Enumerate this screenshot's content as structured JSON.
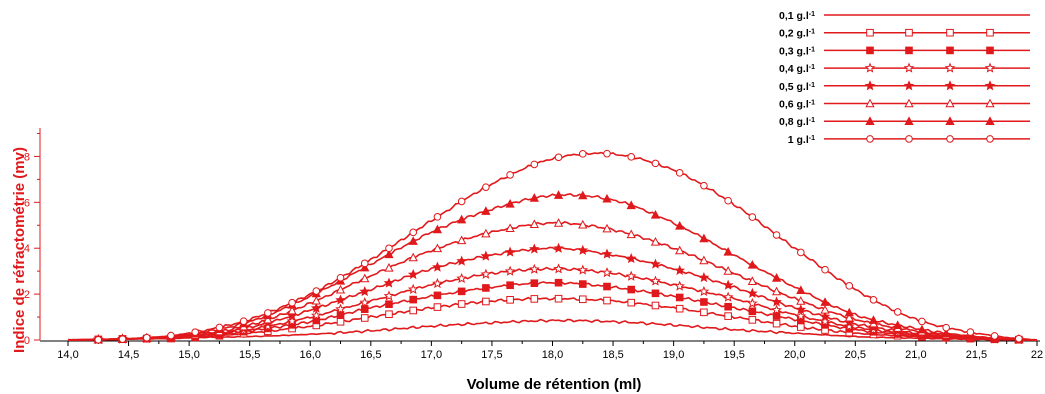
{
  "chart_data": {
    "type": "line",
    "xlabel": "Volume de rétention (ml)",
    "ylabel": "Indice de réfractométrie (mv)",
    "xlim": [
      14.0,
      22.0
    ],
    "ylim": [
      0,
      9.5
    ],
    "x_ticks": [
      "14,0",
      "14,5",
      "15,0",
      "15,5",
      "16,0",
      "16,5",
      "17,0",
      "17,5",
      "18,0",
      "18,5",
      "19,0",
      "19,5",
      "20,0",
      "20,5",
      "21,0",
      "21,5",
      "22"
    ],
    "y_ticks": [
      "0",
      "2",
      "4",
      "6",
      "8"
    ],
    "grid": false,
    "legend_position": "top-right",
    "color": "#e0191c",
    "x": [
      14.0,
      14.5,
      15.0,
      15.5,
      16.0,
      16.5,
      17.0,
      17.5,
      18.0,
      18.5,
      19.0,
      19.5,
      20.0,
      20.5,
      21.0,
      21.5,
      22.0
    ],
    "series": [
      {
        "name": "0,1 g.l-1",
        "marker": "none",
        "values": [
          0.0,
          0.05,
          0.1,
          0.15,
          0.25,
          0.4,
          0.6,
          0.75,
          0.85,
          0.8,
          0.65,
          0.45,
          0.3,
          0.15,
          0.08,
          0.03,
          0.0
        ]
      },
      {
        "name": "0,2 g.l-1",
        "marker": "square-open",
        "values": [
          0.0,
          0.05,
          0.1,
          0.3,
          0.6,
          1.0,
          1.4,
          1.7,
          1.8,
          1.7,
          1.4,
          1.0,
          0.6,
          0.3,
          0.15,
          0.05,
          0.0
        ]
      },
      {
        "name": "0,3 g.l-1",
        "marker": "square-filled",
        "values": [
          0.0,
          0.05,
          0.1,
          0.4,
          0.8,
          1.4,
          1.9,
          2.3,
          2.5,
          2.3,
          1.9,
          1.4,
          0.9,
          0.45,
          0.2,
          0.07,
          0.0
        ]
      },
      {
        "name": "0,4 g.l-1",
        "marker": "star-open",
        "values": [
          0.0,
          0.05,
          0.15,
          0.45,
          1.0,
          1.7,
          2.4,
          2.9,
          3.1,
          2.9,
          2.4,
          1.8,
          1.1,
          0.55,
          0.25,
          0.08,
          0.0
        ]
      },
      {
        "name": "0,5 g.l-1",
        "marker": "star-filled",
        "values": [
          0.0,
          0.05,
          0.15,
          0.55,
          1.3,
          2.2,
          3.1,
          3.7,
          4.0,
          3.7,
          3.1,
          2.3,
          1.4,
          0.7,
          0.3,
          0.1,
          0.0
        ]
      },
      {
        "name": "0,6 g.l-1",
        "marker": "triangle-open",
        "values": [
          0.0,
          0.05,
          0.2,
          0.65,
          1.6,
          2.8,
          3.9,
          4.7,
          5.1,
          4.8,
          4.0,
          2.9,
          1.8,
          0.9,
          0.4,
          0.12,
          0.0
        ]
      },
      {
        "name": "0,8 g.l-1",
        "marker": "triangle-filled",
        "values": [
          0.0,
          0.05,
          0.25,
          0.8,
          1.9,
          3.3,
          4.7,
          5.7,
          6.3,
          6.1,
          5.1,
          3.7,
          2.3,
          1.1,
          0.5,
          0.15,
          0.0
        ]
      },
      {
        "name": "1 g.l-1",
        "marker": "circle-open",
        "values": [
          0.0,
          0.05,
          0.3,
          0.9,
          2.0,
          3.5,
          5.2,
          6.8,
          7.9,
          8.1,
          7.4,
          5.9,
          4.0,
          2.2,
          0.9,
          0.3,
          0.0
        ]
      }
    ]
  }
}
